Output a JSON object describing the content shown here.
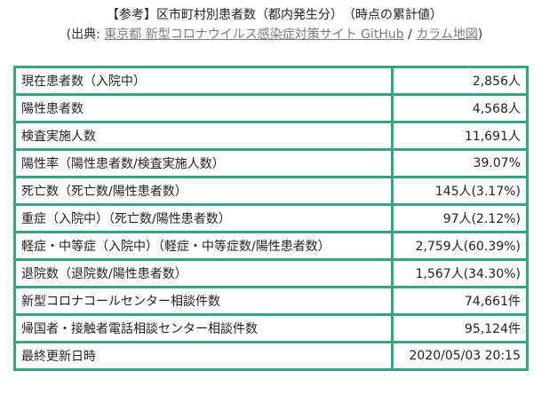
{
  "header": {
    "title": "【参考】区市町村別患者数（都内発生分）　（時点の累計値）",
    "source_prefix": "(出典: ",
    "source_link1": "東京都 新型コロナウイルス感染症対策サイト GitHub",
    "source_sep": " / ",
    "source_link2": "カラム地図",
    "source_suffix": ")"
  },
  "table": {
    "rows": [
      {
        "label": "現在患者数（入院中）",
        "value": "2,856人"
      },
      {
        "label": "陽性患者数",
        "value": "4,568人"
      },
      {
        "label": "検査実施人数",
        "value": "11,691人"
      },
      {
        "label": "陽性率（陽性患者数/検査実施人数）",
        "value": "39.07%"
      },
      {
        "label": "死亡数（死亡数/陽性患者数）",
        "value": "145人(3.17%)"
      },
      {
        "label": "重症（入院中）（死亡数/陽性患者数）",
        "value": "97人(2.12%)"
      },
      {
        "label": "軽症・中等症（入院中）（軽症・中等症数/陽性患者数）",
        "value": "2,759人(60.39%)"
      },
      {
        "label": "退院数（退院数/陽性患者数）",
        "value": "1,567人(34.30%)"
      },
      {
        "label": "新型コロナコールセンター相談件数",
        "value": "74,661件"
      },
      {
        "label": "帰国者・接触者電話相談センター相談件数",
        "value": "95,124件"
      },
      {
        "label": "最終更新日時",
        "value": "2020/05/03 20:15"
      }
    ]
  }
}
